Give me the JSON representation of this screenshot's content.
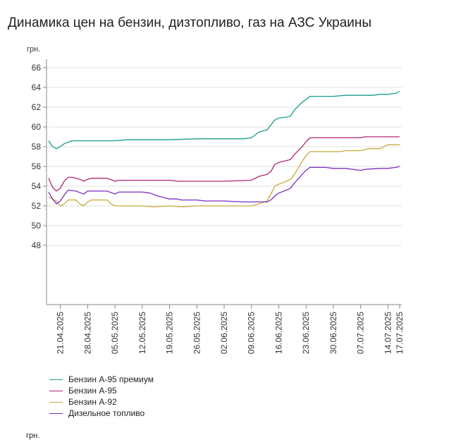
{
  "title": "Динамика цен на бензин, дизтопливо, газ на АЗС Украины",
  "footer_unit": "грн.",
  "chart_data": {
    "type": "line",
    "title": "Динамика цен на бензин, дизтопливо, газ на АЗС Украины",
    "ylabel": "грн.",
    "xlabel": "",
    "ylim": [
      42,
      66
    ],
    "y_ticks": [
      48,
      50,
      52,
      54,
      56,
      58,
      60,
      62,
      64,
      66
    ],
    "x_range": [
      "2025-04-18",
      "2025-07-17"
    ],
    "x_ticks": [
      "21.04.2025",
      "28.04.2025",
      "05.05.2025",
      "12.05.2025",
      "19.05.2025",
      "26.05.2025",
      "02.06.2025",
      "09.06.2025",
      "16.06.2025",
      "23.06.2025",
      "30.06.2025",
      "07.07.2025",
      "14.07.2025",
      "17.07.2025"
    ],
    "grid": "y",
    "legend_position": "bottom",
    "series": [
      {
        "name": "Бензин А-95 премиум",
        "color": "#1a9e8a",
        "points": [
          [
            "2025-04-18",
            58.6
          ],
          [
            "2025-04-19",
            58.0
          ],
          [
            "2025-04-20",
            57.8
          ],
          [
            "2025-04-21",
            58.0
          ],
          [
            "2025-04-22",
            58.3
          ],
          [
            "2025-04-24",
            58.6
          ],
          [
            "2025-04-26",
            58.6
          ],
          [
            "2025-04-28",
            58.6
          ],
          [
            "2025-05-04",
            58.6
          ],
          [
            "2025-05-05",
            58.6
          ],
          [
            "2025-05-08",
            58.7
          ],
          [
            "2025-05-10",
            58.7
          ],
          [
            "2025-05-12",
            58.7
          ],
          [
            "2025-05-19",
            58.7
          ],
          [
            "2025-05-26",
            58.8
          ],
          [
            "2025-06-02",
            58.8
          ],
          [
            "2025-06-07",
            58.8
          ],
          [
            "2025-06-09",
            58.9
          ],
          [
            "2025-06-11",
            59.5
          ],
          [
            "2025-06-13",
            59.7
          ],
          [
            "2025-06-15",
            60.7
          ],
          [
            "2025-06-16",
            60.9
          ],
          [
            "2025-06-18",
            61.0
          ],
          [
            "2025-06-19",
            61.1
          ],
          [
            "2025-06-20",
            61.7
          ],
          [
            "2025-06-22",
            62.5
          ],
          [
            "2025-06-23",
            62.8
          ],
          [
            "2025-06-24",
            63.1
          ],
          [
            "2025-06-30",
            63.1
          ],
          [
            "2025-07-03",
            63.2
          ],
          [
            "2025-07-07",
            63.2
          ],
          [
            "2025-07-10",
            63.2
          ],
          [
            "2025-07-12",
            63.3
          ],
          [
            "2025-07-14",
            63.3
          ],
          [
            "2025-07-16",
            63.4
          ],
          [
            "2025-07-17",
            63.6
          ]
        ]
      },
      {
        "name": "Бензин А-95",
        "color": "#b0276e",
        "points": [
          [
            "2025-04-18",
            54.8
          ],
          [
            "2025-04-19",
            53.9
          ],
          [
            "2025-04-20",
            53.5
          ],
          [
            "2025-04-21",
            53.8
          ],
          [
            "2025-04-22",
            54.5
          ],
          [
            "2025-04-23",
            54.9
          ],
          [
            "2025-04-24",
            54.9
          ],
          [
            "2025-04-26",
            54.7
          ],
          [
            "2025-04-27",
            54.5
          ],
          [
            "2025-04-28",
            54.7
          ],
          [
            "2025-04-29",
            54.8
          ],
          [
            "2025-05-03",
            54.8
          ],
          [
            "2025-05-05",
            54.5
          ],
          [
            "2025-05-06",
            54.6
          ],
          [
            "2025-05-12",
            54.6
          ],
          [
            "2025-05-19",
            54.6
          ],
          [
            "2025-05-21",
            54.5
          ],
          [
            "2025-05-26",
            54.5
          ],
          [
            "2025-06-02",
            54.5
          ],
          [
            "2025-06-09",
            54.6
          ],
          [
            "2025-06-11",
            55.0
          ],
          [
            "2025-06-13",
            55.2
          ],
          [
            "2025-06-14",
            55.5
          ],
          [
            "2025-06-15",
            56.2
          ],
          [
            "2025-06-16",
            56.4
          ],
          [
            "2025-06-18",
            56.6
          ],
          [
            "2025-06-19",
            56.7
          ],
          [
            "2025-06-20",
            57.2
          ],
          [
            "2025-06-22",
            58.0
          ],
          [
            "2025-06-23",
            58.5
          ],
          [
            "2025-06-24",
            58.9
          ],
          [
            "2025-06-30",
            58.9
          ],
          [
            "2025-07-07",
            58.9
          ],
          [
            "2025-07-08",
            59.0
          ],
          [
            "2025-07-14",
            59.0
          ],
          [
            "2025-07-17",
            59.0
          ]
        ]
      },
      {
        "name": "Бензин А-92",
        "color": "#c8a93a",
        "points": [
          [
            "2025-04-18",
            52.9
          ],
          [
            "2025-04-19",
            52.7
          ],
          [
            "2025-04-20",
            52.5
          ],
          [
            "2025-04-21",
            52.0
          ],
          [
            "2025-04-22",
            52.2
          ],
          [
            "2025-04-23",
            52.6
          ],
          [
            "2025-04-25",
            52.6
          ],
          [
            "2025-04-26",
            52.2
          ],
          [
            "2025-04-27",
            52.0
          ],
          [
            "2025-04-28",
            52.4
          ],
          [
            "2025-04-29",
            52.6
          ],
          [
            "2025-05-03",
            52.6
          ],
          [
            "2025-05-04",
            52.2
          ],
          [
            "2025-05-05",
            52.0
          ],
          [
            "2025-05-12",
            52.0
          ],
          [
            "2025-05-15",
            51.9
          ],
          [
            "2025-05-19",
            52.0
          ],
          [
            "2025-05-22",
            51.9
          ],
          [
            "2025-05-26",
            52.0
          ],
          [
            "2025-06-02",
            52.0
          ],
          [
            "2025-06-09",
            52.0
          ],
          [
            "2025-06-11",
            52.2
          ],
          [
            "2025-06-13",
            52.5
          ],
          [
            "2025-06-14",
            53.2
          ],
          [
            "2025-06-15",
            54.0
          ],
          [
            "2025-06-16",
            54.2
          ],
          [
            "2025-06-18",
            54.5
          ],
          [
            "2025-06-19",
            54.7
          ],
          [
            "2025-06-20",
            55.2
          ],
          [
            "2025-06-22",
            56.5
          ],
          [
            "2025-06-23",
            57.1
          ],
          [
            "2025-06-24",
            57.5
          ],
          [
            "2025-06-30",
            57.5
          ],
          [
            "2025-07-02",
            57.5
          ],
          [
            "2025-07-03",
            57.6
          ],
          [
            "2025-07-07",
            57.6
          ],
          [
            "2025-07-09",
            57.8
          ],
          [
            "2025-07-12",
            57.8
          ],
          [
            "2025-07-14",
            58.2
          ],
          [
            "2025-07-17",
            58.2
          ]
        ]
      },
      {
        "name": "Дизельное топливо",
        "color": "#7b2fbe",
        "points": [
          [
            "2025-04-18",
            53.4
          ],
          [
            "2025-04-19",
            52.7
          ],
          [
            "2025-04-20",
            52.2
          ],
          [
            "2025-04-21",
            52.5
          ],
          [
            "2025-04-22",
            53.1
          ],
          [
            "2025-04-23",
            53.6
          ],
          [
            "2025-04-25",
            53.5
          ],
          [
            "2025-04-27",
            53.2
          ],
          [
            "2025-04-28",
            53.5
          ],
          [
            "2025-05-03",
            53.5
          ],
          [
            "2025-05-05",
            53.2
          ],
          [
            "2025-05-06",
            53.4
          ],
          [
            "2025-05-12",
            53.4
          ],
          [
            "2025-05-14",
            53.3
          ],
          [
            "2025-05-16",
            53.0
          ],
          [
            "2025-05-19",
            52.7
          ],
          [
            "2025-05-21",
            52.7
          ],
          [
            "2025-05-22",
            52.6
          ],
          [
            "2025-05-26",
            52.6
          ],
          [
            "2025-05-28",
            52.5
          ],
          [
            "2025-06-02",
            52.5
          ],
          [
            "2025-06-07",
            52.4
          ],
          [
            "2025-06-09",
            52.4
          ],
          [
            "2025-06-13",
            52.4
          ],
          [
            "2025-06-14",
            52.6
          ],
          [
            "2025-06-15",
            53.0
          ],
          [
            "2025-06-16",
            53.3
          ],
          [
            "2025-06-18",
            53.6
          ],
          [
            "2025-06-19",
            53.8
          ],
          [
            "2025-06-20",
            54.3
          ],
          [
            "2025-06-22",
            55.2
          ],
          [
            "2025-06-23",
            55.6
          ],
          [
            "2025-06-24",
            55.9
          ],
          [
            "2025-06-28",
            55.9
          ],
          [
            "2025-06-30",
            55.8
          ],
          [
            "2025-07-03",
            55.8
          ],
          [
            "2025-07-05",
            55.7
          ],
          [
            "2025-07-07",
            55.6
          ],
          [
            "2025-07-08",
            55.7
          ],
          [
            "2025-07-12",
            55.8
          ],
          [
            "2025-07-14",
            55.8
          ],
          [
            "2025-07-16",
            55.9
          ],
          [
            "2025-07-17",
            56.0
          ]
        ]
      }
    ]
  }
}
